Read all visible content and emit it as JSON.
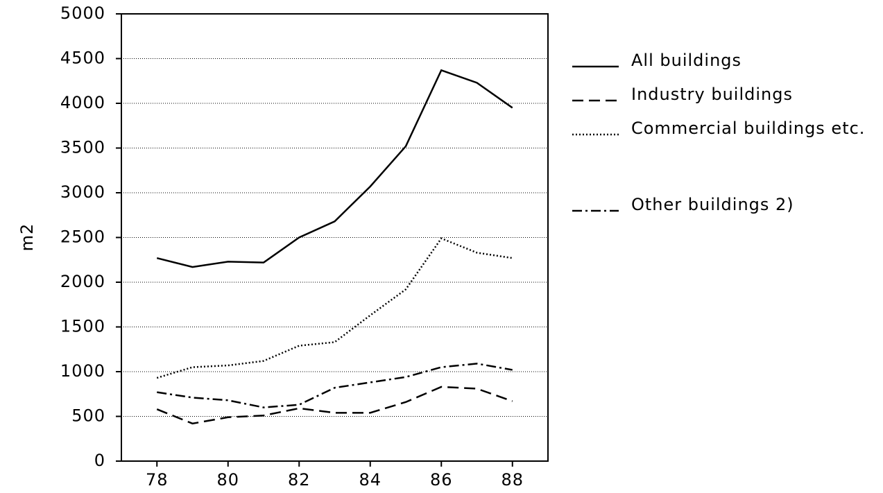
{
  "chart_data": {
    "type": "line",
    "y_label": "m2",
    "x": [
      78,
      79,
      80,
      81,
      82,
      83,
      84,
      85,
      86,
      87,
      88
    ],
    "xlim": [
      77,
      89
    ],
    "xticks": [
      78,
      80,
      82,
      84,
      86,
      88
    ],
    "ylim": [
      0,
      5000
    ],
    "yticks": [
      0,
      500,
      1000,
      1500,
      2000,
      2500,
      3000,
      3500,
      4000,
      4500,
      5000
    ],
    "grid": true,
    "series": [
      {
        "name": "All buildings",
        "color": "#000000",
        "style": "solid",
        "values": [
          2270,
          2170,
          2230,
          2220,
          2500,
          2680,
          3070,
          3520,
          4370,
          4230,
          3950
        ]
      },
      {
        "name": "Industry buildings",
        "color": "#000000",
        "style": "dashed",
        "values": [
          580,
          420,
          490,
          510,
          590,
          540,
          540,
          660,
          830,
          810,
          670
        ]
      },
      {
        "name": "Commercial buildings etc.",
        "color": "#000000",
        "style": "dotted",
        "values": [
          930,
          1050,
          1070,
          1120,
          1290,
          1330,
          1630,
          1920,
          2490,
          2330,
          2270
        ]
      },
      {
        "name": "Other buildings 2)",
        "color": "#000000",
        "style": "dashdot",
        "values": [
          770,
          710,
          680,
          600,
          630,
          820,
          880,
          940,
          1050,
          1090,
          1020
        ]
      }
    ]
  }
}
